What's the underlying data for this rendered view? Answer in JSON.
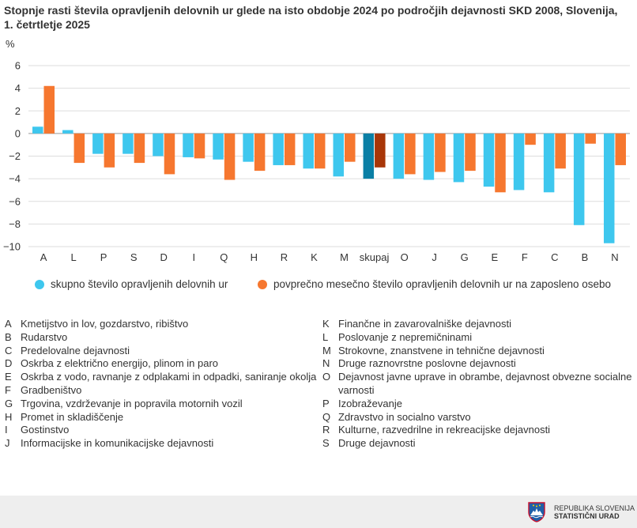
{
  "title": "Stopnje rasti števila opravljenih delovnih ur glede na isto obdobje 2024 po področjih dejavnosti SKD 2008, Slovenija, 1. četrtletje 2025",
  "colors": {
    "series1": "#3ec7ee",
    "series2": "#f6772f",
    "series1_total": "#0a7fa5",
    "series2_total": "#a83608",
    "grid": "#dddddd"
  },
  "chart_data": {
    "type": "bar",
    "title": "Stopnje rasti števila opravljenih delovnih ur glede na isto obdobje 2024 po področjih dejavnosti SKD 2008, Slovenija, 1. četrtletje 2025",
    "ylabel": "%",
    "xlabel": "",
    "ylim": [
      -10,
      6
    ],
    "yticks": [
      6,
      4,
      2,
      0,
      -2,
      -4,
      -6,
      -8,
      -10
    ],
    "grid": true,
    "legend_position": "bottom",
    "categories": [
      "A",
      "L",
      "P",
      "S",
      "D",
      "I",
      "Q",
      "H",
      "R",
      "K",
      "M",
      "skupaj",
      "O",
      "J",
      "G",
      "E",
      "F",
      "C",
      "B",
      "N"
    ],
    "series": [
      {
        "name": "skupno število opravljenih delovnih ur",
        "values": [
          0.6,
          0.3,
          -1.8,
          -1.8,
          -2.0,
          -2.1,
          -2.3,
          -2.5,
          -2.8,
          -3.1,
          -3.8,
          -4.0,
          -4.0,
          -4.1,
          -4.3,
          -4.7,
          -5.0,
          -5.2,
          -8.1,
          -9.7
        ]
      },
      {
        "name": "povprečno mesečno število opravljenih delovnih ur na zaposleno osebo",
        "values": [
          4.2,
          -2.6,
          -3.0,
          -2.6,
          -3.6,
          -2.2,
          -4.1,
          -3.3,
          -2.8,
          -3.1,
          -2.5,
          -3.0,
          -3.6,
          -3.4,
          -3.3,
          -5.2,
          -1.0,
          -3.1,
          -0.9,
          -2.8
        ]
      }
    ]
  },
  "legend": {
    "series1": "skupno število opravljenih delovnih ur",
    "series2": "povprečno mesečno število opravljenih delovnih ur na zaposleno osebo"
  },
  "codes_left": [
    {
      "code": "A",
      "text": "Kmetijstvo in lov, gozdarstvo, ribištvo"
    },
    {
      "code": "B",
      "text": "Rudarstvo"
    },
    {
      "code": "C",
      "text": "Predelovalne dejavnosti"
    },
    {
      "code": "D",
      "text": "Oskrba z električno energijo, plinom in paro"
    },
    {
      "code": "E",
      "text": "Oskrba z vodo, ravnanje z odplakami in odpadki, saniranje okolja"
    },
    {
      "code": "F",
      "text": "Gradbeništvo"
    },
    {
      "code": "G",
      "text": "Trgovina, vzdrževanje in popravila motornih vozil"
    },
    {
      "code": "H",
      "text": "Promet in skladiščenje"
    },
    {
      "code": "I",
      "text": "Gostinstvo"
    },
    {
      "code": "J",
      "text": "Informacijske in komunikacijske dejavnosti"
    }
  ],
  "codes_right": [
    {
      "code": "K",
      "text": "Finančne in zavarovalniške dejavnosti"
    },
    {
      "code": "L",
      "text": "Poslovanje z nepremičninami"
    },
    {
      "code": "M",
      "text": "Strokovne, znanstvene in tehnične dejavnosti"
    },
    {
      "code": "N",
      "text": "Druge raznovrstne poslovne dejavnosti"
    },
    {
      "code": "O",
      "text": "Dejavnost javne uprave in obrambe, dejavnost obvezne socialne varnosti"
    },
    {
      "code": "P",
      "text": "Izobraževanje"
    },
    {
      "code": "Q",
      "text": "Zdravstvo in socialno varstvo"
    },
    {
      "code": "R",
      "text": "Kulturne, razvedrilne in rekreacijske dejavnosti"
    },
    {
      "code": "S",
      "text": "Druge dejavnosti"
    }
  ],
  "footer": {
    "org_line1": "REPUBLIKA SLOVENIJA",
    "org_line2": "STATISTIČNI URAD",
    "logo_icon": "slovenia-coat-of-arms-icon"
  }
}
